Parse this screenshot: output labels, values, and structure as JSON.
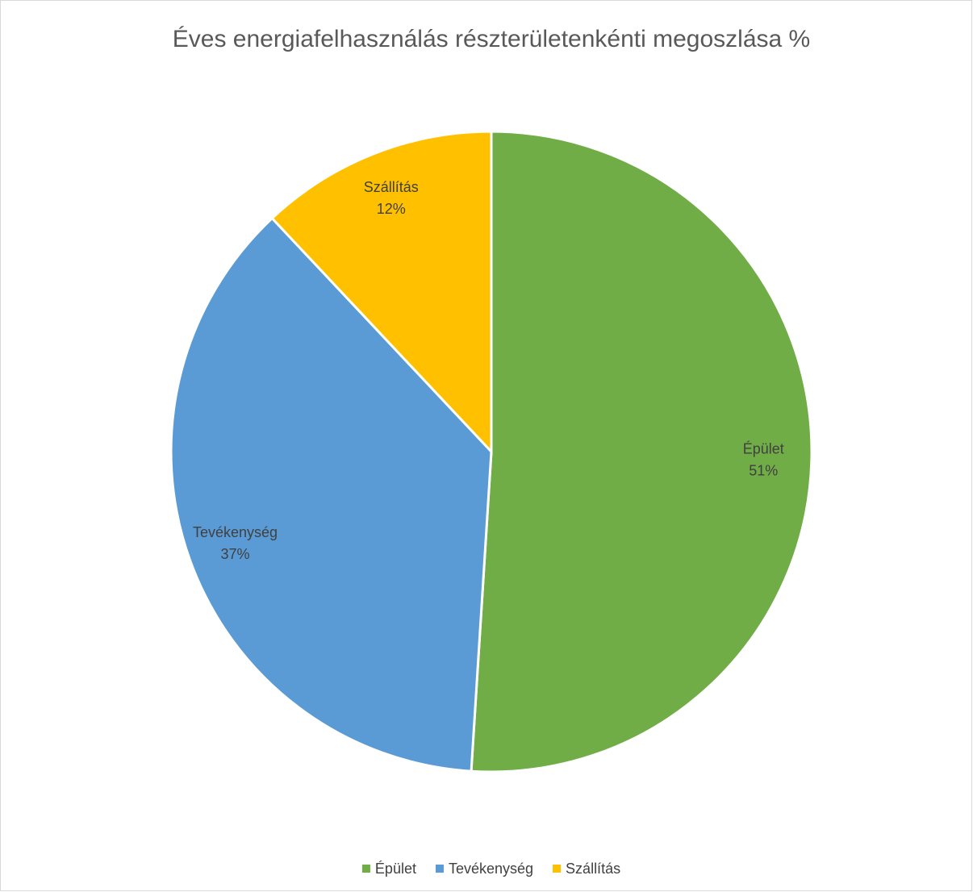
{
  "chart_data": {
    "type": "pie",
    "title": "Éves energiafelhasználás részterületenkénti megoszlása %",
    "categories": [
      "Épület",
      "Tevékenység",
      "Szállítás"
    ],
    "values": [
      51,
      37,
      12
    ],
    "value_labels": [
      "51%",
      "37%",
      "12%"
    ],
    "colors": [
      "#70ad47",
      "#5b9bd5",
      "#ffc000"
    ],
    "legend": "bottom"
  }
}
